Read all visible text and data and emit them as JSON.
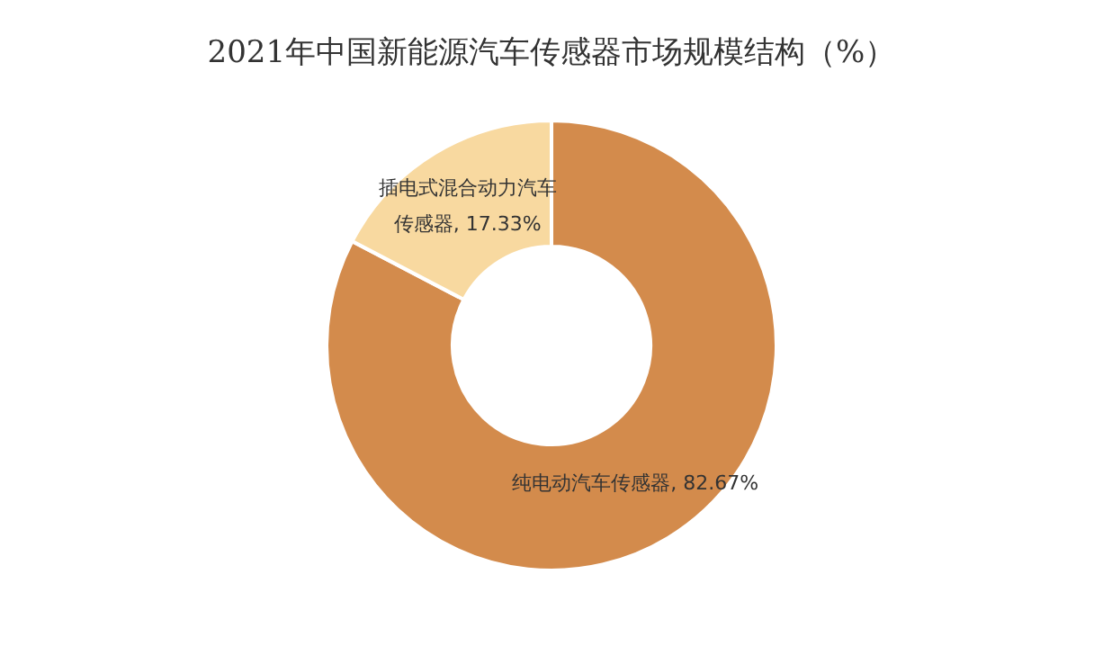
{
  "chart_data": {
    "type": "donut",
    "title": "2021年中国新能源汽车传感器市场规模结构（%）",
    "categories": [
      "纯电动汽车传感器",
      "插电式混合动力汽车传感器"
    ],
    "values": [
      82.67,
      17.33
    ],
    "colors": [
      "#d38b4c",
      "#f8d9a0"
    ],
    "value_labels": [
      "82.67%",
      "17.33%"
    ],
    "legend": false
  }
}
